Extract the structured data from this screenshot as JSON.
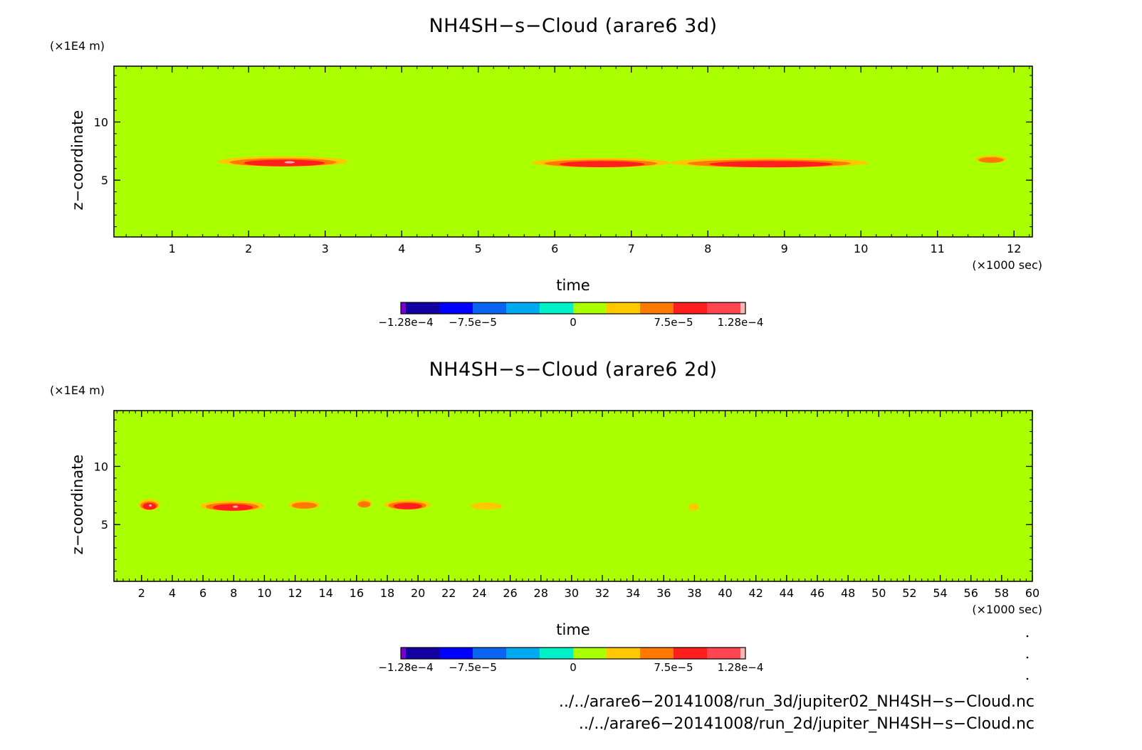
{
  "chart_data": [
    {
      "type": "heatmap",
      "title": "NH4SH−s−Cloud (arare6 3d)",
      "xlabel": "time",
      "xunit": "(×1000 sec)",
      "ylabel": "z−coordinate",
      "yunit": "(×1E4 m)",
      "xlim": [
        0.24,
        12.24
      ],
      "ylim": [
        0.12,
        14.8
      ],
      "xticks": [
        1,
        2,
        3,
        4,
        5,
        6,
        7,
        8,
        9,
        10,
        11,
        12
      ],
      "xtick_labels": [
        "1",
        "2",
        "3",
        "4",
        "5",
        "6",
        "7",
        "8",
        "9",
        "10",
        "11",
        "12"
      ],
      "yticks": [
        5,
        10
      ],
      "ytick_labels": [
        "5",
        "10"
      ],
      "background_value": 0,
      "cloud_blobs": [
        {
          "t0": 1.6,
          "t1": 3.3,
          "z": 6.6,
          "peak": 0.00011
        },
        {
          "t0": 5.7,
          "t1": 7.5,
          "z": 6.5,
          "peak": 9e-05
        },
        {
          "t0": 7.5,
          "t1": 10.1,
          "z": 6.5,
          "peak": 0.0001
        },
        {
          "t0": 11.5,
          "t1": 11.9,
          "z": 6.8,
          "peak": 4e-05
        }
      ],
      "colorbar": {
        "colors": [
          "#7a00c8",
          "#1400a0",
          "#0000ff",
          "#0a64f0",
          "#00aaf0",
          "#00f0c8",
          "#aaff00",
          "#ffc800",
          "#ff7800",
          "#ff1e1e",
          "#ff4650",
          "#ffb4b4"
        ],
        "labels": [
          "−1.28e−4",
          "−7.5e−5",
          "0",
          "7.5e−5",
          "1.28e−4"
        ]
      }
    },
    {
      "type": "heatmap",
      "title": "NH4SH−s−Cloud (arare6 2d)",
      "xlabel": "time",
      "xunit": "(×1000 sec)",
      "ylabel": "z−coordinate",
      "yunit": "(×1E4 m)",
      "xlim": [
        0.2,
        60
      ],
      "ylim": [
        0.12,
        14.8
      ],
      "xticks": [
        2,
        4,
        6,
        8,
        10,
        12,
        14,
        16,
        18,
        20,
        22,
        24,
        26,
        28,
        30,
        32,
        34,
        36,
        38,
        40,
        42,
        44,
        46,
        48,
        50,
        52,
        54,
        56,
        58,
        60
      ],
      "xtick_labels": [
        "2",
        "4",
        "6",
        "8",
        "10",
        "12",
        "14",
        "16",
        "18",
        "20",
        "22",
        "24",
        "26",
        "28",
        "30",
        "32",
        "34",
        "36",
        "38",
        "40",
        "42",
        "44",
        "46",
        "48",
        "50",
        "52",
        "54",
        "56",
        "58",
        "60"
      ],
      "yticks": [
        5,
        10
      ],
      "ytick_labels": [
        "5",
        "10"
      ],
      "background_value": 0,
      "cloud_blobs": [
        {
          "t0": 1.8,
          "t1": 3.2,
          "z": 6.7,
          "peak": 0.00012
        },
        {
          "t0": 5.8,
          "t1": 10.0,
          "z": 6.6,
          "peak": 0.00011
        },
        {
          "t0": 11.6,
          "t1": 13.6,
          "z": 6.7,
          "peak": 6e-05
        },
        {
          "t0": 16.0,
          "t1": 17.0,
          "z": 6.8,
          "peak": 6e-05
        },
        {
          "t0": 17.8,
          "t1": 20.8,
          "z": 6.7,
          "peak": 0.0001
        },
        {
          "t0": 23.4,
          "t1": 25.5,
          "z": 6.6,
          "peak": 3e-05
        },
        {
          "t0": 37.6,
          "t1": 38.3,
          "z": 6.5,
          "peak": 3e-05
        }
      ],
      "colorbar": {
        "colors": [
          "#7a00c8",
          "#1400a0",
          "#0000ff",
          "#0a64f0",
          "#00aaf0",
          "#00f0c8",
          "#aaff00",
          "#ffc800",
          "#ff7800",
          "#ff1e1e",
          "#ff4650",
          "#ffb4b4"
        ],
        "labels": [
          "−1.28e−4",
          "−7.5e−5",
          "0",
          "7.5e−5",
          "1.28e−4"
        ]
      }
    }
  ],
  "footer": {
    "file_3d": "../../arare6−20141008/run_3d/jupiter02_NH4SH−s−Cloud.nc",
    "file_2d": "../../arare6−20141008/run_2d/jupiter_NH4SH−s−Cloud.nc"
  },
  "colors": {
    "background_field": "#aaff00",
    "cloud_light": "#ffc800",
    "cloud_mid": "#ff7800",
    "cloud_dark": "#ff1e1e",
    "cloud_peak": "#ffb4b4"
  }
}
